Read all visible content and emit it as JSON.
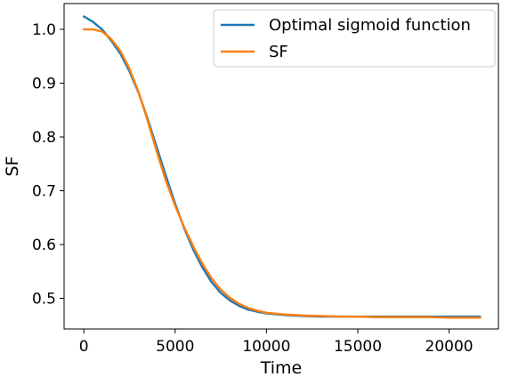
{
  "chart_data": {
    "type": "line",
    "title": "",
    "xlabel": "Time",
    "ylabel": "SF",
    "xlim": [
      -1080,
      22700
    ],
    "ylim": [
      0.443,
      1.048
    ],
    "x_ticks": [
      0,
      5000,
      10000,
      15000,
      20000
    ],
    "x_tick_labels": [
      "0",
      "5000",
      "10000",
      "15000",
      "20000"
    ],
    "y_ticks": [
      0.5,
      0.6,
      0.7,
      0.8,
      0.9,
      1.0
    ],
    "y_tick_labels": [
      "0.5",
      "0.6",
      "0.7",
      "0.8",
      "0.9",
      "1.0"
    ],
    "grid": false,
    "legend_position": "top-right",
    "series": [
      {
        "name": "Optimal sigmoid function",
        "color": "#1f77b4",
        "x": [
          0,
          500,
          1000,
          1500,
          2000,
          2500,
          3000,
          3500,
          4000,
          4500,
          5000,
          5500,
          6000,
          6500,
          7000,
          7500,
          8000,
          8500,
          9000,
          9500,
          10000,
          11000,
          12000,
          13000,
          14000,
          15000,
          16000,
          17000,
          18000,
          19000,
          20000,
          21000,
          21700
        ],
        "values": [
          1.024,
          1.014,
          1.0,
          0.979,
          0.955,
          0.922,
          0.882,
          0.833,
          0.78,
          0.727,
          0.676,
          0.63,
          0.59,
          0.557,
          0.53,
          0.51,
          0.496,
          0.486,
          0.479,
          0.475,
          0.472,
          0.469,
          0.467,
          0.466,
          0.466,
          0.466,
          0.466,
          0.466,
          0.466,
          0.466,
          0.466,
          0.466,
          0.466
        ]
      },
      {
        "name": "SF",
        "color": "#ff7f0e",
        "x": [
          0,
          500,
          1000,
          1500,
          2000,
          2500,
          3000,
          3500,
          4000,
          4500,
          5000,
          5500,
          6000,
          6500,
          7000,
          7500,
          8000,
          8500,
          9000,
          9500,
          10000,
          11000,
          12000,
          13000,
          14000,
          15000,
          16000,
          17000,
          18000,
          19000,
          20000,
          21000,
          21700
        ],
        "values": [
          1.0,
          1.0,
          0.996,
          0.982,
          0.96,
          0.927,
          0.883,
          0.83,
          0.772,
          0.718,
          0.672,
          0.632,
          0.596,
          0.564,
          0.537,
          0.516,
          0.501,
          0.49,
          0.482,
          0.477,
          0.473,
          0.47,
          0.468,
          0.467,
          0.466,
          0.466,
          0.465,
          0.465,
          0.465,
          0.465,
          0.464,
          0.464,
          0.464
        ]
      }
    ]
  }
}
